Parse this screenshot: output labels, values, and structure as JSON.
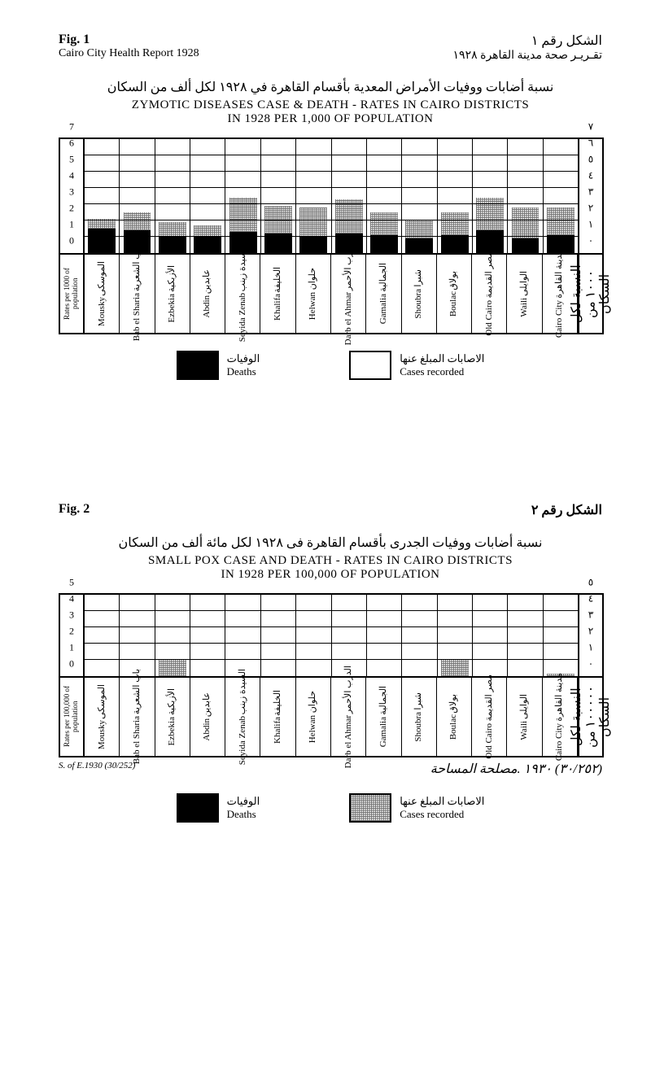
{
  "page": {
    "header_left_title": "Fig. 1",
    "header_left_sub": "Cairo City Health Report 1928",
    "header_right_ar_line1": "الشكل رقم ١",
    "header_right_ar_line2": "تقـريـر صحة مدينة القاهرة ١٩٢٨"
  },
  "fig1": {
    "title_ar": "نسبة أضابات ووفيات الأمراض المعدية بأقسام القاهرة في ١٩٢٨ لكل ألف من السكان",
    "title_en_line1": "ZYMOTIC DISEASES CASE & DEATH - RATES IN CAIRO DISTRICTS",
    "title_en_line2": "IN 1928 PER 1,000 OF POPULATION",
    "y_left_label": "Rates per 1000\nof population",
    "y_right_label": "النسبة لكل\n١٠٠٠ من السكان",
    "y_ticks_left": [
      "7",
      "6",
      "5",
      "4",
      "3",
      "2",
      "1",
      "0"
    ],
    "y_ticks_right": [
      "٧",
      "٦",
      "٥",
      "٤",
      "٣",
      "٢",
      "١",
      "٠"
    ],
    "y_max": 7,
    "colors": {
      "deaths": "#000000",
      "cases": "#7a7a7a",
      "border": "#000000",
      "bg": "#ffffff"
    },
    "districts": [
      {
        "label_ar": "الموسكى",
        "label_en": "Mousky",
        "deaths": 1.5,
        "cases": 0.6
      },
      {
        "label_ar": "باب الشعرية",
        "label_en": "Bab el Sharia",
        "deaths": 1.4,
        "cases": 1.1
      },
      {
        "label_ar": "الأزبكية",
        "label_en": "Ezbekia",
        "deaths": 1.0,
        "cases": 0.9
      },
      {
        "label_ar": "عابدين",
        "label_en": "Abdin",
        "deaths": 1.0,
        "cases": 0.7
      },
      {
        "label_ar": "السيدة زينب",
        "label_en": "Seyida Zenab",
        "deaths": 1.3,
        "cases": 2.1
      },
      {
        "label_ar": "الخليفة",
        "label_en": "Khalifa",
        "deaths": 1.2,
        "cases": 1.7
      },
      {
        "label_ar": "حلوان",
        "label_en": "Helwan",
        "deaths": 1.0,
        "cases": 1.8
      },
      {
        "label_ar": "الدرب الأحمر",
        "label_en": "Darb el Ahmar",
        "deaths": 1.2,
        "cases": 2.1
      },
      {
        "label_ar": "الجمالية",
        "label_en": "Gamalia",
        "deaths": 1.1,
        "cases": 1.4
      },
      {
        "label_ar": "شبرا",
        "label_en": "Shoubra",
        "deaths": 0.9,
        "cases": 1.1
      },
      {
        "label_ar": "بولاق",
        "label_en": "Boulac",
        "deaths": 1.1,
        "cases": 1.4
      },
      {
        "label_ar": "مصر القديمة",
        "label_en": "Old Cairo",
        "deaths": 1.4,
        "cases": 2.0
      },
      {
        "label_ar": "الوايلى",
        "label_en": "Waili",
        "deaths": 0.9,
        "cases": 1.9
      },
      {
        "label_ar": "مدينة القاهرة",
        "label_en": "Cairo City",
        "deaths": 1.1,
        "cases": 1.7
      }
    ]
  },
  "legend": {
    "deaths_ar": "الوفيات",
    "deaths_en": "Deaths",
    "cases_ar": "الاصابات المبلغ عنها",
    "cases_en": "Cases recorded"
  },
  "fig2_header": {
    "left": "Fig. 2",
    "right_ar": "الشكل رقم ٢"
  },
  "fig2": {
    "title_ar": "نسبة أضابات ووفيات الجدرى بأقسام القاهرة فى ١٩٢٨ لكل مائة ألف من السكان",
    "title_en_line1": "SMALL POX CASE AND DEATH - RATES IN CAIRO DISTRICTS",
    "title_en_line2": "IN 1928 PER 100,000 OF POPULATION",
    "y_left_label": "Rates per 100,000\nof population",
    "y_right_label": "النسبة لكل\n١٠٠٠٠٠ من السكان",
    "y_ticks_left": [
      "5",
      "4",
      "3",
      "2",
      "1",
      "0"
    ],
    "y_ticks_right": [
      "٥",
      "٤",
      "٣",
      "٢",
      "١",
      "٠"
    ],
    "y_max": 5,
    "districts": [
      {
        "label_ar": "الموسكى",
        "label_en": "Mousky",
        "deaths": 0,
        "cases": 0
      },
      {
        "label_ar": "باب الشعرية",
        "label_en": "Bab el Sharia",
        "deaths": 0,
        "cases": 0
      },
      {
        "label_ar": "الأزبكية",
        "label_en": "Ezbekia",
        "deaths": 0,
        "cases": 1.0
      },
      {
        "label_ar": "عابدين",
        "label_en": "Abdin",
        "deaths": 0,
        "cases": 0
      },
      {
        "label_ar": "السيدة زينب",
        "label_en": "Seyida Zenab",
        "deaths": 0,
        "cases": 0
      },
      {
        "label_ar": "الخليفة",
        "label_en": "Khalifa",
        "deaths": 0,
        "cases": 0
      },
      {
        "label_ar": "حلوان",
        "label_en": "Helwan",
        "deaths": 0,
        "cases": 0
      },
      {
        "label_ar": "الدرب الأحمر",
        "label_en": "Darb el Ahmar",
        "deaths": 0,
        "cases": 0
      },
      {
        "label_ar": "الجمالية",
        "label_en": "Gamalia",
        "deaths": 0,
        "cases": 0
      },
      {
        "label_ar": "شبرا",
        "label_en": "Shoubra",
        "deaths": 0,
        "cases": 0
      },
      {
        "label_ar": "بولاق",
        "label_en": "Boulac",
        "deaths": 0,
        "cases": 1.0
      },
      {
        "label_ar": "مصر القديمة",
        "label_en": "Old Cairo",
        "deaths": 0,
        "cases": 0
      },
      {
        "label_ar": "الوايلى",
        "label_en": "Waili",
        "deaths": 0,
        "cases": 0
      },
      {
        "label_ar": "مدينة القاهرة",
        "label_en": "Cairo City",
        "deaths": 0,
        "cases": 0.15
      }
    ],
    "footnote_left": "S. of E.1930 (30/252)",
    "footnote_right": "(٣٠/٢٥٢) ١٩٣٠ .مصلحة المساحة"
  }
}
